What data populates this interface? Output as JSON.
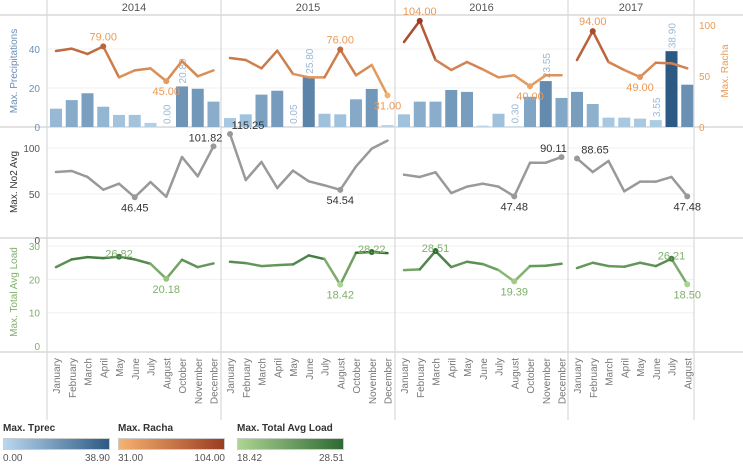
{
  "chart_data": {
    "type": "combo (bar + line, small multiples)",
    "colors": {
      "tprec": [
        "#b9d7ee",
        "#2c5a85"
      ],
      "racha": [
        "#f6b26e",
        "#9b3c22"
      ],
      "load": [
        "#add492",
        "#2e6a32"
      ],
      "no2": "#999999"
    },
    "axes": {
      "precip": {
        "label": "Max. Precipitations",
        "ticks": [
          0,
          20,
          40
        ],
        "ylim": [
          0,
          55
        ]
      },
      "racha": {
        "label": "Max. Racha",
        "ticks": [
          0,
          50,
          100
        ],
        "ylim": [
          0,
          104
        ]
      },
      "no2": {
        "label": "Max. No2 Avg",
        "ticks": [
          0,
          50,
          100
        ],
        "ylim": [
          0,
          115.25
        ]
      },
      "load": {
        "label": "Max. Total Avg Load",
        "ticks": [
          0,
          10,
          20,
          30
        ],
        "ylim": [
          0,
          31
        ]
      }
    },
    "years": [
      {
        "year": "2014",
        "months": [
          "January",
          "February",
          "March",
          "April",
          "May",
          "June",
          "July",
          "August",
          "October",
          "November",
          "December"
        ],
        "precip": [
          9.4,
          13.8,
          17.3,
          10.4,
          6.2,
          6.2,
          2.1,
          0.0,
          20.8,
          19.6,
          13.0
        ],
        "racha": [
          74.5,
          76.8,
          71.6,
          79.0,
          48.7,
          55.5,
          57.5,
          45.0,
          64.7,
          49.7,
          55.5
        ],
        "no2": [
          73.9,
          75.0,
          68.5,
          54.7,
          61.2,
          46.45,
          63.0,
          47.0,
          90.2,
          69.2,
          101.82
        ],
        "load": [
          23.7,
          26.0,
          26.7,
          26.4,
          26.82,
          26.0,
          24.7,
          20.18,
          25.9,
          23.7,
          24.8
        ],
        "labels": {
          "precip": [
            7,
            8
          ],
          "racha": [
            3,
            7
          ],
          "no2": [
            5,
            10
          ],
          "load": [
            4,
            7
          ]
        }
      },
      {
        "year": "2015",
        "months": [
          "January",
          "February",
          "March",
          "April",
          "May",
          "June",
          "July",
          "August",
          "October",
          "November",
          "December"
        ],
        "precip": [
          4.6,
          6.5,
          16.6,
          18.6,
          0.05,
          25.8,
          6.8,
          6.5,
          14.2,
          19.5,
          1.0
        ],
        "racha": [
          67.6,
          65.7,
          57.5,
          74.8,
          52.0,
          48.7,
          48.7,
          76.0,
          50.7,
          60.8,
          31.0
        ],
        "no2": [
          115.25,
          65.2,
          84.8,
          56.5,
          75.4,
          63.8,
          59.4,
          54.54,
          80.0,
          99.3,
          108.0
        ],
        "load": [
          25.3,
          24.9,
          24.0,
          24.3,
          24.5,
          27.2,
          26.1,
          18.42,
          28.0,
          28.22,
          27.9
        ],
        "labels": {
          "precip": [
            4,
            5
          ],
          "racha": [
            7,
            10
          ],
          "no2": [
            0,
            7
          ],
          "load": [
            7,
            9
          ]
        }
      },
      {
        "year": "2016",
        "months": [
          "January",
          "February",
          "March",
          "April",
          "May",
          "June",
          "July",
          "August",
          "October",
          "November",
          "December"
        ],
        "precip": [
          6.5,
          13.0,
          13.0,
          19.0,
          18.0,
          0.7,
          6.8,
          0.3,
          15.5,
          23.55,
          14.9
        ],
        "racha": [
          83.3,
          104.0,
          65.7,
          55.9,
          63.7,
          56.5,
          48.7,
          50.7,
          40.0,
          50.7,
          50.7
        ],
        "no2": [
          71.0,
          68.5,
          73.6,
          51.0,
          58.0,
          61.2,
          58.0,
          47.48,
          84.0,
          84.0,
          90.11
        ],
        "load": [
          22.8,
          23.0,
          28.51,
          23.7,
          25.3,
          24.6,
          22.8,
          19.39,
          24.0,
          24.1,
          24.7
        ],
        "labels": {
          "precip": [
            7,
            9
          ],
          "racha": [
            1,
            8
          ],
          "no2": [
            7,
            10
          ],
          "load": [
            2,
            7
          ]
        }
      },
      {
        "year": "2017",
        "months": [
          "January",
          "February",
          "March",
          "April",
          "May",
          "June",
          "July",
          "August"
        ],
        "precip": [
          18.0,
          11.8,
          4.8,
          4.8,
          4.3,
          3.55,
          38.9,
          21.7
        ],
        "racha": [
          65.7,
          94.0,
          63.7,
          55.9,
          49.0,
          63.0,
          62.4,
          57.5
        ],
        "no2": [
          88.65,
          73.9,
          85.9,
          52.9,
          63.4,
          63.4,
          68.5,
          47.48
        ],
        "load": [
          23.4,
          25.0,
          24.0,
          23.8,
          25.0,
          24.0,
          26.21,
          18.5
        ],
        "labels": {
          "precip": [
            5,
            6
          ],
          "racha": [
            1,
            4
          ],
          "no2": [
            0,
            7
          ],
          "load": [
            6,
            7
          ]
        }
      }
    ]
  },
  "legends": [
    {
      "title": "Max. Tprec",
      "min": "0.00",
      "max": "38.90",
      "key": "tprec"
    },
    {
      "title": "Max. Racha",
      "min": "31.00",
      "max": "104.00",
      "key": "racha"
    },
    {
      "title": "Max. Total Avg Load",
      "min": "18.42",
      "max": "28.51",
      "key": "load"
    }
  ]
}
